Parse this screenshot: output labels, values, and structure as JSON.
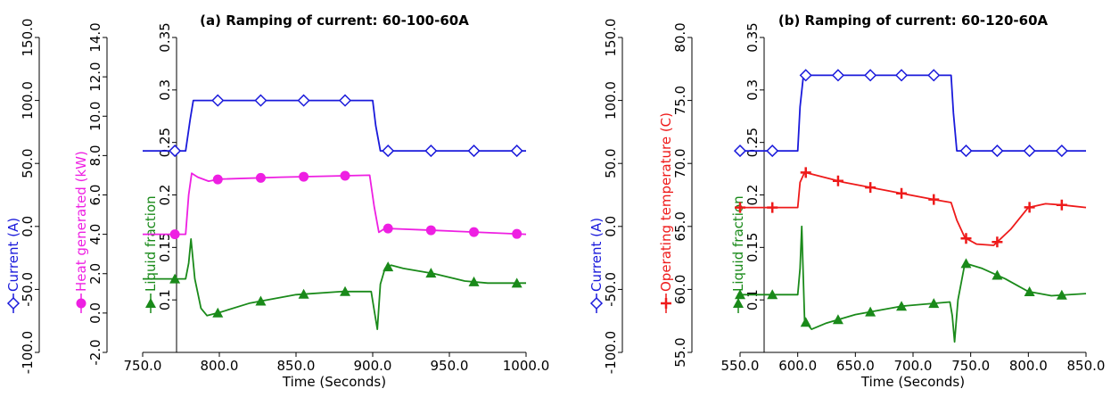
{
  "chart_data": [
    {
      "type": "line",
      "title": "(a) Ramping of current: 60-100-60A",
      "xlabel": "Time (Seconds)",
      "xlim": [
        750,
        1000
      ],
      "xticks": [
        "750.0",
        "800.0",
        "850.0",
        "900.0",
        "950.0",
        "1000.0"
      ],
      "axes": [
        {
          "label": "Current (A)",
          "color": "#1a1adb",
          "marker": "diamond",
          "ylim": [
            -100,
            150
          ],
          "ticks": [
            "-100.0",
            "-50.0",
            "0.0",
            "50.0",
            "100.0",
            "150.0"
          ]
        },
        {
          "label": "Heat generated (kW)",
          "color": "#ee1fe2",
          "marker": "circle",
          "ylim": [
            -2,
            14
          ],
          "ticks": [
            "-2.0",
            "0.0",
            "2.0",
            "4.0",
            "6.0",
            "8.0",
            "10.0",
            "12.0",
            "14.0"
          ]
        },
        {
          "label": "Liquid fraction",
          "color": "#1a8a1a",
          "marker": "triangle",
          "ylim": [
            0.05,
            0.35
          ],
          "ticks": [
            "0.1",
            "0.15",
            "0.2",
            "0.25",
            "0.3",
            "0.35"
          ]
        }
      ],
      "series": [
        {
          "name": "Current (A)",
          "axis": 0,
          "color": "#1a1adb",
          "marker": "diamond",
          "x": [
            750,
            778,
            781,
            783,
            900,
            902,
            905,
            1000
          ],
          "y": [
            60,
            60,
            85,
            100,
            100,
            80,
            60,
            60
          ],
          "marker_x": [
            771,
            799,
            827,
            855,
            882,
            910,
            938,
            966,
            994
          ]
        },
        {
          "name": "Heat generated (kW)",
          "axis": 1,
          "color": "#ee1fe2",
          "marker": "circle",
          "x": [
            750,
            778,
            780,
            782,
            786,
            793,
            800,
            840,
            898,
            901,
            904,
            908,
            940,
            1000
          ],
          "y": [
            4.0,
            4.0,
            6.0,
            7.1,
            6.9,
            6.7,
            6.8,
            6.9,
            7.0,
            5.4,
            4.1,
            4.3,
            4.2,
            4.0
          ],
          "marker_x": [
            771,
            799,
            827,
            855,
            882,
            910,
            938,
            966,
            994
          ]
        },
        {
          "name": "Liquid fraction",
          "axis": 2,
          "color": "#1a8a1a",
          "marker": "triangle",
          "x": [
            750,
            778,
            780,
            781.5,
            784,
            788,
            792,
            800,
            820,
            850,
            880,
            899,
            901,
            903,
            905,
            908,
            912,
            920,
            940,
            960,
            975,
            1000
          ],
          "y": [
            0.12,
            0.12,
            0.135,
            0.158,
            0.12,
            0.092,
            0.085,
            0.088,
            0.097,
            0.105,
            0.108,
            0.108,
            0.09,
            0.072,
            0.115,
            0.13,
            0.133,
            0.13,
            0.125,
            0.118,
            0.116,
            0.116
          ],
          "marker_x": [
            771,
            799,
            827,
            855,
            882,
            910,
            938,
            966,
            994
          ]
        }
      ]
    },
    {
      "type": "line",
      "title": "(b) Ramping of current: 60-120-60A",
      "xlabel": "Time (Seconds)",
      "xlim": [
        550,
        850
      ],
      "xticks": [
        "550.0",
        "600.0",
        "650.0",
        "700.0",
        "750.0",
        "800.0",
        "850.0"
      ],
      "axes": [
        {
          "label": "Current (A)",
          "color": "#1a1adb",
          "marker": "diamond",
          "ylim": [
            -100,
            150
          ],
          "ticks": [
            "-100.0",
            "-50.0",
            "0.0",
            "50.0",
            "100.0",
            "150.0"
          ]
        },
        {
          "label": "Operating temperature (C)",
          "color": "#ee1a1a",
          "marker": "plus",
          "ylim": [
            55,
            80
          ],
          "ticks": [
            "55.0",
            "60.0",
            "65.0",
            "70.0",
            "75.0",
            "80.0"
          ]
        },
        {
          "label": "Liquid fraction",
          "color": "#1a8a1a",
          "marker": "triangle",
          "ylim": [
            0.05,
            0.35
          ],
          "ticks": [
            "0.1",
            "0.15",
            "0.2",
            "0.25",
            "0.3",
            "0.35"
          ]
        }
      ],
      "series": [
        {
          "name": "Current (A)",
          "axis": 0,
          "color": "#1a1adb",
          "marker": "diamond",
          "x": [
            550,
            600,
            602,
            605,
            733,
            735,
            738,
            850
          ],
          "y": [
            60,
            60,
            95,
            120,
            120,
            90,
            60,
            60
          ],
          "marker_x": [
            550,
            578,
            607,
            635,
            663,
            690,
            718,
            746,
            773,
            801,
            829
          ]
        },
        {
          "name": "Operating temperature (C)",
          "axis": 1,
          "color": "#ee1a1a",
          "marker": "plus",
          "x": [
            550,
            600,
            602,
            606,
            640,
            680,
            720,
            733,
            738,
            745,
            755,
            770,
            785,
            800,
            815,
            830,
            850
          ],
          "y": [
            66.5,
            66.5,
            68.5,
            69.3,
            68.5,
            67.8,
            67.1,
            66.9,
            65.5,
            64.1,
            63.6,
            63.5,
            64.8,
            66.5,
            66.8,
            66.7,
            66.5
          ],
          "marker_x": [
            550,
            578,
            607,
            635,
            663,
            690,
            718,
            746,
            773,
            801,
            829
          ]
        },
        {
          "name": "Liquid fraction",
          "axis": 2,
          "color": "#1a8a1a",
          "marker": "triangle",
          "x": [
            550,
            600,
            602,
            603.5,
            606,
            612,
            625,
            650,
            690,
            732,
            734,
            736,
            739,
            745,
            760,
            780,
            800,
            820,
            850
          ],
          "y": [
            0.105,
            0.105,
            0.13,
            0.17,
            0.08,
            0.072,
            0.078,
            0.086,
            0.094,
            0.098,
            0.085,
            0.06,
            0.1,
            0.135,
            0.13,
            0.12,
            0.108,
            0.104,
            0.106
          ],
          "marker_x": [
            550,
            578,
            607,
            635,
            663,
            690,
            718,
            746,
            773,
            801,
            829
          ]
        }
      ]
    }
  ]
}
